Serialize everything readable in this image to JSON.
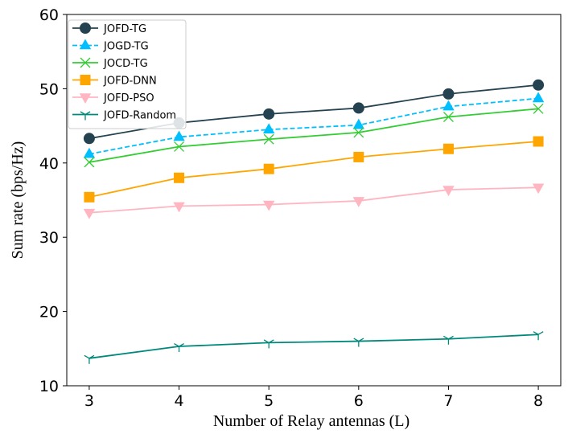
{
  "chart_data": {
    "type": "line",
    "title": "",
    "xlabel": "Number of Relay antennas (L)",
    "ylabel": "Sum rate (bps/Hz)",
    "x": [
      3,
      4,
      5,
      6,
      7,
      8
    ],
    "xticks": [
      "3",
      "4",
      "5",
      "6",
      "7",
      "8"
    ],
    "xlim": [
      2.75,
      8.25
    ],
    "ylim": [
      10,
      60
    ],
    "yticks": [
      "10",
      "20",
      "30",
      "40",
      "50",
      "60"
    ],
    "grid": false,
    "legend_position": "top-left",
    "series": [
      {
        "name": "JOFD-TG",
        "values": [
          43.3,
          45.4,
          46.6,
          47.4,
          49.3,
          50.5
        ],
        "color": "#24424f",
        "marker": "circle",
        "dash": "solid"
      },
      {
        "name": "JOGD-TG",
        "values": [
          41.2,
          43.5,
          44.5,
          45.1,
          47.6,
          48.7
        ],
        "color": "#00bfff",
        "marker": "triangle-up",
        "dash": "dashed"
      },
      {
        "name": "JOCD-TG",
        "values": [
          40.1,
          42.2,
          43.2,
          44.1,
          46.2,
          47.3
        ],
        "color": "#32cd32",
        "marker": "x",
        "dash": "solid"
      },
      {
        "name": "JOFD-DNN",
        "values": [
          35.4,
          38.0,
          39.2,
          40.8,
          41.9,
          42.9
        ],
        "color": "#ffa500",
        "marker": "square",
        "dash": "solid"
      },
      {
        "name": "JOFD-PSO",
        "values": [
          33.3,
          34.2,
          34.4,
          34.9,
          36.4,
          36.7
        ],
        "color": "#ffb6c1",
        "marker": "triangle-down",
        "dash": "solid"
      },
      {
        "name": "JOFD-Random",
        "values": [
          13.7,
          15.3,
          15.8,
          16.0,
          16.3,
          16.9
        ],
        "color": "#00897b",
        "marker": "tri-down",
        "dash": "solid"
      }
    ]
  }
}
